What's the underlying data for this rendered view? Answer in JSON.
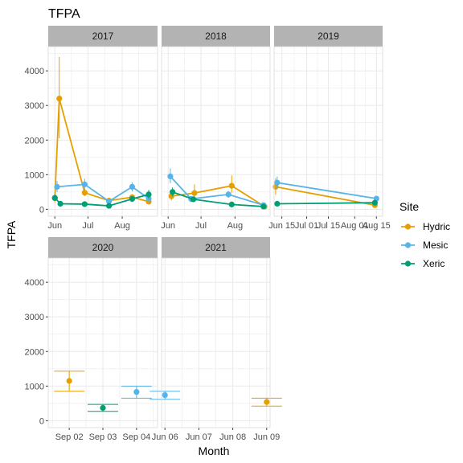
{
  "title": "TFPA",
  "xlabel": "Month",
  "ylabel": "TFPA",
  "colors": {
    "strip_bg": "#b3b3b3",
    "grid": "#ebebeb",
    "panel_border": "#d9d9d9"
  },
  "legend": {
    "title": "Site",
    "placement": "right",
    "items": [
      {
        "label": "Hydric",
        "color": "#E69F00"
      },
      {
        "label": "Mesic",
        "color": "#56B4E9"
      },
      {
        "label": "Xeric",
        "color": "#009E73"
      }
    ]
  },
  "chart_data": {
    "type": "line",
    "shared_y": true,
    "ylim": [
      -200,
      4700
    ],
    "y_ticks": [
      0,
      1000,
      2000,
      3000,
      4000
    ],
    "y_tick_labels": [
      "0",
      "1000",
      "2000",
      "3000",
      "4000"
    ],
    "grid": true,
    "facets": [
      {
        "label": "2017",
        "x_domain": [
          "2017-05-26",
          "2017-09-02"
        ],
        "x_ticks": [
          "2017-06-01",
          "2017-07-01",
          "2017-08-01"
        ],
        "x_tick_labels": [
          "Jun",
          "Jul",
          "Aug"
        ],
        "series": [
          {
            "name": "Hydric",
            "points": [
              {
                "x": "2017-06-01",
                "y": 320,
                "lo": 200,
                "hi": 450
              },
              {
                "x": "2017-06-05",
                "y": 3200,
                "lo": 2050,
                "hi": 4400
              },
              {
                "x": "2017-06-28",
                "y": 480,
                "lo": 380,
                "hi": 600
              },
              {
                "x": "2017-07-20",
                "y": 250,
                "lo": 190,
                "hi": 310
              },
              {
                "x": "2017-08-10",
                "y": 350,
                "lo": 260,
                "hi": 440
              },
              {
                "x": "2017-08-25",
                "y": 220,
                "lo": 160,
                "hi": 280
              }
            ]
          },
          {
            "name": "Mesic",
            "points": [
              {
                "x": "2017-06-03",
                "y": 650,
                "lo": 500,
                "hi": 820
              },
              {
                "x": "2017-06-28",
                "y": 720,
                "lo": 560,
                "hi": 880
              },
              {
                "x": "2017-07-20",
                "y": 230,
                "lo": 180,
                "hi": 290
              },
              {
                "x": "2017-08-10",
                "y": 650,
                "lo": 520,
                "hi": 780
              },
              {
                "x": "2017-08-25",
                "y": 310,
                "lo": 230,
                "hi": 390
              }
            ]
          },
          {
            "name": "Xeric",
            "points": [
              {
                "x": "2017-06-01",
                "y": 330,
                "lo": 240,
                "hi": 430
              },
              {
                "x": "2017-06-06",
                "y": 160,
                "lo": 110,
                "hi": 210
              },
              {
                "x": "2017-06-28",
                "y": 150,
                "lo": 110,
                "hi": 190
              },
              {
                "x": "2017-07-20",
                "y": 100,
                "lo": 70,
                "hi": 130
              },
              {
                "x": "2017-08-10",
                "y": 300,
                "lo": 230,
                "hi": 370
              },
              {
                "x": "2017-08-25",
                "y": 430,
                "lo": 300,
                "hi": 560
              }
            ]
          }
        ]
      },
      {
        "label": "2018",
        "x_domain": [
          "2018-05-26",
          "2018-09-02"
        ],
        "x_ticks": [
          "2018-06-01",
          "2018-07-01",
          "2018-08-01"
        ],
        "x_tick_labels": [
          "Jun",
          "Jul",
          "Aug"
        ],
        "series": [
          {
            "name": "Hydric",
            "points": [
              {
                "x": "2018-06-04",
                "y": 380,
                "lo": 260,
                "hi": 520
              },
              {
                "x": "2018-06-25",
                "y": 470,
                "lo": 300,
                "hi": 720
              },
              {
                "x": "2018-07-29",
                "y": 680,
                "lo": 480,
                "hi": 980
              },
              {
                "x": "2018-08-28",
                "y": 80,
                "lo": 50,
                "hi": 110
              }
            ]
          },
          {
            "name": "Mesic",
            "points": [
              {
                "x": "2018-06-03",
                "y": 950,
                "lo": 750,
                "hi": 1180
              },
              {
                "x": "2018-06-22",
                "y": 300,
                "lo": 230,
                "hi": 370
              },
              {
                "x": "2018-07-26",
                "y": 430,
                "lo": 330,
                "hi": 530
              },
              {
                "x": "2018-08-27",
                "y": 120,
                "lo": 80,
                "hi": 160
              }
            ]
          },
          {
            "name": "Xeric",
            "points": [
              {
                "x": "2018-06-05",
                "y": 500,
                "lo": 370,
                "hi": 630
              },
              {
                "x": "2018-06-24",
                "y": 290,
                "lo": 230,
                "hi": 350
              },
              {
                "x": "2018-07-29",
                "y": 140,
                "lo": 100,
                "hi": 180
              },
              {
                "x": "2018-08-27",
                "y": 80,
                "lo": 50,
                "hi": 110
              }
            ]
          }
        ]
      },
      {
        "label": "2019",
        "x_domain": [
          "2019-06-10",
          "2019-08-19"
        ],
        "x_ticks": [
          "2019-06-15",
          "2019-07-01",
          "2019-07-15",
          "2019-08-01",
          "2019-08-15"
        ],
        "x_tick_labels": [
          "Jun 15",
          "Jul 01",
          "Jul 15",
          "Aug 01",
          "Aug 15"
        ],
        "series": [
          {
            "name": "Hydric",
            "points": [
              {
                "x": "2019-06-11",
                "y": 650,
                "lo": 420,
                "hi": 900
              },
              {
                "x": "2019-08-14",
                "y": 120,
                "lo": 80,
                "hi": 160
              }
            ]
          },
          {
            "name": "Mesic",
            "points": [
              {
                "x": "2019-06-12",
                "y": 770,
                "lo": 600,
                "hi": 950
              },
              {
                "x": "2019-08-15",
                "y": 310,
                "lo": 240,
                "hi": 380
              }
            ]
          },
          {
            "name": "Xeric",
            "points": [
              {
                "x": "2019-06-12",
                "y": 160,
                "lo": 120,
                "hi": 200
              },
              {
                "x": "2019-08-14",
                "y": 190,
                "lo": 140,
                "hi": 240
              }
            ]
          }
        ]
      },
      {
        "label": "2020",
        "x_domain": [
          "2020-09-01 09:00",
          "2020-09-04 15:00"
        ],
        "x_ticks": [
          "2020-09-02",
          "2020-09-03",
          "2020-09-04"
        ],
        "x_tick_labels": [
          "Sep 02",
          "Sep 03",
          "Sep 04"
        ],
        "series": [
          {
            "name": "Hydric",
            "points": [
              {
                "x": "2020-09-02",
                "y": 1150,
                "lo": 850,
                "hi": 1430
              }
            ]
          },
          {
            "name": "Mesic",
            "points": [
              {
                "x": "2020-09-04",
                "y": 830,
                "lo": 650,
                "hi": 1000
              }
            ]
          },
          {
            "name": "Xeric",
            "points": [
              {
                "x": "2020-09-03",
                "y": 370,
                "lo": 270,
                "hi": 470
              }
            ]
          }
        ]
      },
      {
        "label": "2021",
        "x_domain": [
          "2021-06-05 21:36",
          "2021-06-09 02:24"
        ],
        "x_ticks": [
          "2021-06-06",
          "2021-06-07",
          "2021-06-08",
          "2021-06-09"
        ],
        "x_tick_labels": [
          "Jun 06",
          "Jun 07",
          "Jun 08",
          "Jun 09"
        ],
        "series": [
          {
            "name": "Hydric",
            "points": [
              {
                "x": "2021-06-09",
                "y": 540,
                "lo": 420,
                "hi": 650
              }
            ]
          },
          {
            "name": "Mesic",
            "points": [
              {
                "x": "2021-06-06",
                "y": 740,
                "lo": 620,
                "hi": 850
              }
            ]
          }
        ]
      }
    ]
  }
}
